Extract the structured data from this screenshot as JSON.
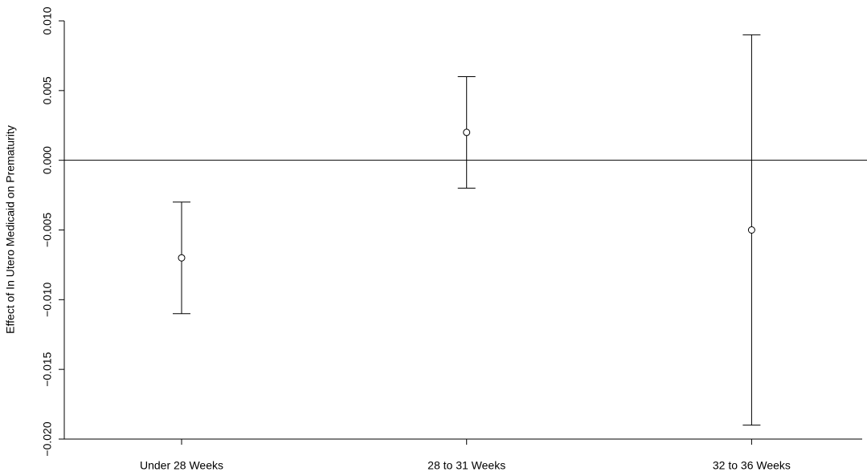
{
  "chart_data": {
    "type": "errorbar",
    "y_label": "Effect of In Utero Medicaid on Prematurity",
    "categories": [
      "Under 28 Weeks",
      "28 to 31 Weeks",
      "32 to 36 Weeks"
    ],
    "values": [
      -0.007,
      0.002,
      -0.005
    ],
    "errors": [
      0.004,
      0.004,
      0.014
    ],
    "color": "#000000",
    "ylim": [
      -0.02,
      0.01
    ],
    "yticks": [
      {
        "value": -0.02,
        "label": "−0.020"
      },
      {
        "value": -0.015,
        "label": "−0.015"
      },
      {
        "value": -0.01,
        "label": "−0.010"
      },
      {
        "value": -0.005,
        "label": "−0.005"
      },
      {
        "value": 0,
        "label": "0.000"
      },
      {
        "value": 0.005,
        "label": "0.005"
      },
      {
        "value": 0.01,
        "label": "0.010"
      }
    ],
    "reference_line": 0
  }
}
